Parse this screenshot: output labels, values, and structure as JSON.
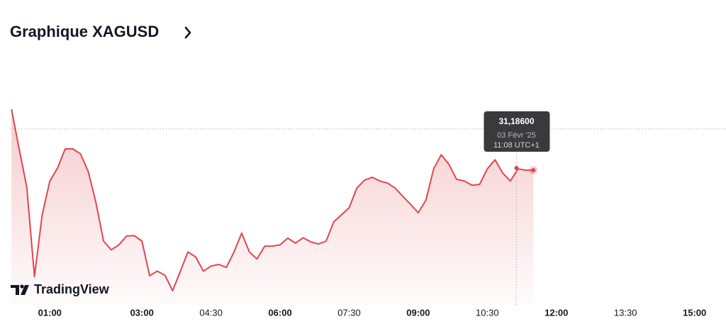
{
  "chart_data": {
    "type": "line",
    "title": "Graphique XAGUSD",
    "watermark": "TradingView",
    "x": [
      10,
      20,
      30,
      40,
      50,
      60,
      70,
      80,
      90,
      100,
      110,
      120,
      130,
      140,
      150,
      160,
      170,
      180,
      190,
      200,
      210,
      220,
      230,
      240,
      250,
      260,
      270,
      280,
      290,
      300,
      310,
      320,
      330,
      340,
      350,
      360,
      370,
      380,
      390,
      400,
      410,
      420,
      430,
      440,
      450,
      460,
      470,
      480,
      490,
      500,
      510,
      520,
      530,
      540,
      550,
      560,
      570,
      580,
      590,
      600,
      610,
      620,
      630,
      640,
      650,
      660,
      670,
      680,
      690
    ],
    "series": [
      {
        "name": "XAGUSD",
        "color": "#e0464c",
        "values": [
          31.327,
          31.232,
          31.14,
          30.926,
          31.074,
          31.155,
          31.186,
          31.232,
          31.232,
          31.22,
          31.178,
          31.104,
          31.011,
          30.99,
          31.002,
          31.023,
          31.024,
          31.011,
          30.928,
          30.939,
          30.929,
          30.892,
          30.938,
          30.985,
          30.973,
          30.939,
          30.951,
          30.955,
          30.948,
          30.985,
          31.03,
          30.985,
          30.968,
          30.999,
          30.999,
          31.002,
          31.018,
          31.006,
          31.019,
          31.009,
          31.004,
          31.011,
          31.057,
          31.074,
          31.091,
          31.138,
          31.157,
          31.164,
          31.155,
          31.15,
          31.138,
          31.118,
          31.099,
          31.079,
          31.109,
          31.184,
          31.218,
          31.195,
          31.159,
          31.155,
          31.145,
          31.147,
          31.184,
          31.206,
          31.174,
          31.155,
          31.184,
          31.181,
          31.181
        ]
      }
    ],
    "xlim": [
      8,
      941
    ],
    "ylim": [
      30.858,
      31.351
    ],
    "xticks": [
      {
        "value": 60,
        "label": "01:00",
        "major": true
      },
      {
        "value": 180,
        "label": "03:00",
        "major": true
      },
      {
        "value": 270,
        "label": "04:30",
        "major": false
      },
      {
        "value": 360,
        "label": "06:00",
        "major": true
      },
      {
        "value": 450,
        "label": "07:30",
        "major": false
      },
      {
        "value": 540,
        "label": "09:00",
        "major": true
      },
      {
        "value": 630,
        "label": "10:30",
        "major": false
      },
      {
        "value": 720,
        "label": "12:00",
        "major": true
      },
      {
        "value": 810,
        "label": "13:30",
        "major": false
      },
      {
        "value": 900,
        "label": "15:00",
        "major": true
      }
    ],
    "reference_line": 31.28,
    "tooltip": {
      "x": 668,
      "y": 31.186,
      "value": "31,18600",
      "date": "03 Févr '25",
      "time": "11:08 UTC+1"
    }
  }
}
